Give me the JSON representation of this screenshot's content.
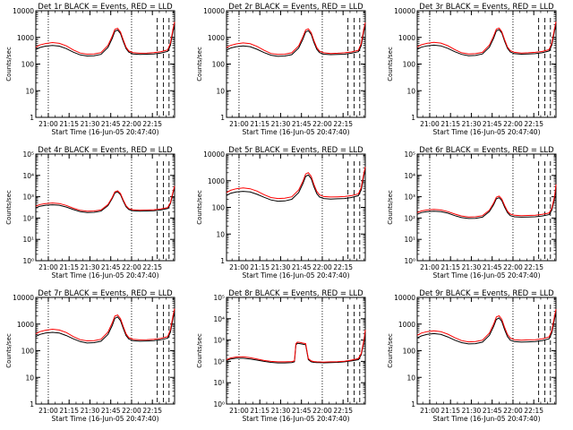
{
  "chart_data": [
    {
      "type": "line",
      "title": "Det 1r BLACK = Events, RED = LLD",
      "xlabel": "Start Time (16-Jun-05 20:47:40)",
      "ylabel": "Counts/sec",
      "x_ticks": [
        "21:00",
        "21:15",
        "21:30",
        "21:45",
        "22:00",
        "22:15"
      ],
      "y_ticks": [
        "1",
        "10",
        "100",
        "1000",
        "10000"
      ],
      "ylim": [
        1,
        10000
      ],
      "ygrid": false,
      "legend": "none",
      "x": [
        0,
        3,
        7,
        12,
        17,
        22,
        27,
        32,
        37,
        42,
        47,
        52,
        55,
        57,
        59,
        61,
        63,
        65,
        67,
        70,
        75,
        80,
        85,
        90,
        95,
        97,
        99,
        100
      ],
      "series": [
        {
          "values": [
            350,
            420,
            470,
            500,
            470,
            380,
            280,
            220,
            200,
            205,
            230,
            420,
            900,
            1700,
            1900,
            1400,
            700,
            380,
            280,
            240,
            230,
            235,
            240,
            260,
            300,
            500,
            1800,
            3000
          ]
        },
        {
          "values": [
            430,
            520,
            590,
            640,
            600,
            480,
            340,
            260,
            235,
            240,
            270,
            500,
            1100,
            2000,
            2200,
            1600,
            800,
            430,
            310,
            270,
            255,
            260,
            270,
            290,
            340,
            600,
            2200,
            3800
          ]
        }
      ],
      "vlines_dotted": [
        0.09,
        0.69
      ],
      "vlines_dashed": [
        0.875,
        0.92,
        0.96
      ]
    },
    {
      "type": "line",
      "title": "Det 2r BLACK = Events, RED = LLD",
      "xlabel": "Start Time (16-Jun-05 20:47:40)",
      "ylabel": "Counts/sec",
      "x_ticks": [
        "21:00",
        "21:15",
        "21:30",
        "21:45",
        "22:00",
        "22:15"
      ],
      "y_ticks": [
        "1",
        "10",
        "100",
        "1000",
        "10000"
      ],
      "ylim": [
        1,
        10000
      ],
      "ygrid": false,
      "legend": "none",
      "x": [
        0,
        3,
        7,
        12,
        17,
        22,
        27,
        32,
        37,
        42,
        47,
        52,
        55,
        57,
        59,
        61,
        63,
        65,
        67,
        70,
        75,
        80,
        85,
        90,
        95,
        97,
        99,
        100
      ],
      "series": [
        {
          "values": [
            330,
            400,
            450,
            480,
            450,
            360,
            270,
            215,
            195,
            200,
            225,
            400,
            850,
            1600,
            1800,
            1300,
            650,
            360,
            270,
            235,
            225,
            230,
            235,
            255,
            290,
            480,
            1700,
            2800
          ]
        },
        {
          "values": [
            420,
            500,
            570,
            620,
            580,
            460,
            330,
            250,
            230,
            235,
            265,
            480,
            1050,
            1900,
            2100,
            1500,
            760,
            420,
            305,
            265,
            250,
            255,
            265,
            285,
            330,
            580,
            2100,
            3600
          ]
        }
      ],
      "vlines_dotted": [
        0.09,
        0.69
      ],
      "vlines_dashed": [
        0.875,
        0.92,
        0.96
      ]
    },
    {
      "type": "line",
      "title": "Det 3r BLACK = Events, RED = LLD",
      "xlabel": "Start Time (16-Jun-05 20:47:40)",
      "ylabel": "Counts/sec",
      "x_ticks": [
        "21:00",
        "21:15",
        "21:30",
        "21:45",
        "22:00",
        "22:15"
      ],
      "y_ticks": [
        "1",
        "10",
        "100",
        "1000",
        "10000"
      ],
      "ylim": [
        1,
        10000
      ],
      "ygrid": false,
      "legend": "none",
      "x": [
        0,
        3,
        7,
        12,
        17,
        22,
        27,
        32,
        37,
        42,
        47,
        52,
        55,
        57,
        59,
        61,
        63,
        65,
        67,
        70,
        75,
        80,
        85,
        90,
        95,
        97,
        99,
        100
      ],
      "series": [
        {
          "values": [
            360,
            430,
            480,
            510,
            480,
            390,
            290,
            230,
            205,
            210,
            240,
            430,
            920,
            1750,
            1950,
            1450,
            720,
            390,
            285,
            245,
            235,
            240,
            245,
            265,
            310,
            520,
            1850,
            3100
          ]
        },
        {
          "values": [
            440,
            530,
            600,
            650,
            610,
            490,
            350,
            265,
            240,
            245,
            275,
            510,
            1120,
            2050,
            2250,
            1650,
            820,
            440,
            320,
            275,
            260,
            265,
            275,
            295,
            350,
            620,
            2250,
            3900
          ]
        }
      ],
      "vlines_dotted": [
        0.09,
        0.69
      ],
      "vlines_dashed": [
        0.875,
        0.92,
        0.96
      ]
    },
    {
      "type": "line",
      "title": "Det 4r BLACK = Events, RED = LLD",
      "xlabel": "Start Time (16-Jun-05 20:47:40)",
      "ylabel": "Counts/sec",
      "x_ticks": [
        "21:00",
        "21:15",
        "21:30",
        "21:45",
        "22:00",
        "22:15"
      ],
      "y_ticks": [
        "10⁰",
        "10¹",
        "10²",
        "10³",
        "10⁴",
        "10⁵"
      ],
      "ylim": [
        1,
        100000
      ],
      "ygrid": false,
      "legend": "none",
      "x": [
        0,
        3,
        7,
        12,
        17,
        22,
        27,
        32,
        37,
        42,
        47,
        52,
        55,
        57,
        59,
        61,
        63,
        65,
        67,
        70,
        75,
        80,
        85,
        90,
        95,
        97,
        99,
        100
      ],
      "series": [
        {
          "values": [
            300,
            360,
            400,
            420,
            400,
            330,
            250,
            200,
            180,
            185,
            210,
            380,
            820,
            1500,
            1700,
            1250,
            620,
            340,
            250,
            220,
            210,
            215,
            220,
            240,
            280,
            460,
            1600,
            2700
          ]
        },
        {
          "values": [
            360,
            430,
            480,
            510,
            480,
            390,
            290,
            230,
            210,
            215,
            240,
            430,
            920,
            1700,
            1900,
            1400,
            700,
            380,
            280,
            245,
            235,
            240,
            245,
            265,
            310,
            520,
            1800,
            3200
          ]
        }
      ],
      "vlines_dotted": [
        0.09,
        0.69
      ],
      "vlines_dashed": [
        0.875,
        0.92,
        0.96
      ]
    },
    {
      "type": "line",
      "title": "Det 5r BLACK = Events, RED = LLD",
      "xlabel": "Start Time (16-Jun-05 20:47:40)",
      "ylabel": "Counts/sec",
      "x_ticks": [
        "21:00",
        "21:15",
        "21:30",
        "21:45",
        "22:00",
        "22:15"
      ],
      "y_ticks": [
        "1",
        "10",
        "100",
        "1000",
        "10000"
      ],
      "ylim": [
        1,
        10000
      ],
      "ygrid": false,
      "legend": "none",
      "x": [
        0,
        3,
        7,
        12,
        17,
        22,
        27,
        32,
        37,
        42,
        47,
        52,
        55,
        57,
        59,
        61,
        63,
        65,
        67,
        70,
        75,
        80,
        85,
        90,
        95,
        97,
        99,
        100
      ],
      "series": [
        {
          "values": [
            280,
            340,
            380,
            400,
            380,
            310,
            240,
            190,
            170,
            175,
            200,
            360,
            780,
            1450,
            1650,
            1200,
            600,
            330,
            245,
            215,
            205,
            210,
            215,
            235,
            275,
            450,
            1550,
            2600
          ]
        },
        {
          "values": [
            360,
            440,
            500,
            540,
            500,
            410,
            300,
            235,
            215,
            220,
            250,
            450,
            960,
            1800,
            2000,
            1450,
            730,
            400,
            295,
            255,
            245,
            250,
            255,
            275,
            320,
            540,
            1900,
            3300
          ]
        }
      ],
      "vlines_dotted": [
        0.09,
        0.69
      ],
      "vlines_dashed": [
        0.875,
        0.92,
        0.96
      ]
    },
    {
      "type": "line",
      "title": "Det 6r BLACK = Events, RED = LLD",
      "xlabel": "Start Time (16-Jun-05 20:47:40)",
      "ylabel": "Counts/sec",
      "x_ticks": [
        "21:00",
        "21:15",
        "21:30",
        "21:45",
        "22:00",
        "22:15"
      ],
      "y_ticks": [
        "10⁰",
        "10¹",
        "10²",
        "10³",
        "10⁴",
        "10⁵"
      ],
      "ylim": [
        1,
        100000
      ],
      "ygrid": false,
      "legend": "none",
      "x": [
        0,
        3,
        7,
        12,
        17,
        22,
        27,
        32,
        37,
        42,
        47,
        52,
        55,
        57,
        59,
        61,
        63,
        65,
        67,
        70,
        75,
        80,
        85,
        90,
        95,
        97,
        99,
        100
      ],
      "series": [
        {
          "values": [
            150,
            180,
            200,
            210,
            200,
            170,
            130,
            105,
            95,
            97,
            110,
            200,
            420,
            800,
            900,
            660,
            330,
            180,
            130,
            115,
            110,
            112,
            115,
            125,
            145,
            240,
            900,
            3000
          ]
        },
        {
          "values": [
            180,
            215,
            240,
            255,
            240,
            200,
            155,
            125,
            112,
            115,
            130,
            235,
            500,
            950,
            1070,
            780,
            390,
            210,
            155,
            135,
            130,
            132,
            135,
            148,
            172,
            290,
            1100,
            3800
          ]
        }
      ],
      "vlines_dotted": [
        0.09,
        0.69
      ],
      "vlines_dashed": [
        0.875,
        0.92,
        0.96
      ]
    },
    {
      "type": "line",
      "title": "Det 7r BLACK = Events, RED = LLD",
      "xlabel": "Start Time (16-Jun-05 20:47:40)",
      "ylabel": "Counts/sec",
      "x_ticks": [
        "21:00",
        "21:15",
        "21:30",
        "21:45",
        "22:00",
        "22:15"
      ],
      "y_ticks": [
        "1",
        "10",
        "100",
        "1000",
        "10000"
      ],
      "ylim": [
        1,
        10000
      ],
      "ygrid": false,
      "legend": "none",
      "x": [
        0,
        3,
        7,
        12,
        17,
        22,
        27,
        32,
        37,
        42,
        47,
        52,
        55,
        57,
        59,
        61,
        63,
        65,
        67,
        70,
        75,
        80,
        85,
        90,
        95,
        97,
        99,
        100
      ],
      "series": [
        {
          "values": [
            340,
            410,
            460,
            490,
            460,
            370,
            280,
            220,
            195,
            200,
            228,
            410,
            870,
            1650,
            1850,
            1350,
            680,
            370,
            275,
            238,
            228,
            232,
            238,
            258,
            295,
            490,
            1750,
            2900
          ]
        },
        {
          "values": [
            430,
            520,
            590,
            640,
            600,
            480,
            340,
            260,
            235,
            240,
            270,
            500,
            1100,
            2000,
            2200,
            1600,
            800,
            430,
            310,
            270,
            255,
            260,
            270,
            290,
            340,
            600,
            2200,
            3800
          ]
        }
      ],
      "vlines_dotted": [
        0.09,
        0.69
      ],
      "vlines_dashed": [
        0.875,
        0.92,
        0.96
      ]
    },
    {
      "type": "line",
      "title": "Det 8r BLACK = Events, RED = LLD",
      "xlabel": "Start Time (16-Jun-05 20:47:40)",
      "ylabel": "Counts/sec",
      "x_ticks": [
        "21:00",
        "21:15",
        "21:30",
        "21:45",
        "22:00",
        "22:15"
      ],
      "y_ticks": [
        "10⁰",
        "10¹",
        "10²",
        "10³",
        "10⁴",
        "10⁵"
      ],
      "ylim": [
        1,
        100000
      ],
      "ygrid": false,
      "legend": "none",
      "x": [
        0,
        3,
        7,
        12,
        17,
        22,
        27,
        32,
        37,
        42,
        47,
        49,
        50,
        51,
        53,
        55,
        57,
        59,
        61,
        63,
        65,
        67,
        70,
        75,
        80,
        85,
        90,
        95,
        97,
        99,
        100
      ],
      "series": [
        {
          "values": [
            110,
            130,
            140,
            140,
            130,
            115,
            100,
            90,
            85,
            85,
            88,
            95,
            600,
            700,
            680,
            640,
            600,
            120,
            95,
            90,
            88,
            87,
            86,
            88,
            90,
            95,
            105,
            120,
            200,
            800,
            2500
          ]
        },
        {
          "values": [
            120,
            145,
            160,
            165,
            150,
            130,
            110,
            100,
            95,
            95,
            98,
            105,
            680,
            800,
            770,
            720,
            680,
            135,
            105,
            98,
            95,
            94,
            93,
            95,
            97,
            102,
            115,
            135,
            230,
            950,
            3000
          ]
        }
      ],
      "vlines_dotted": [
        0.09,
        0.69
      ],
      "vlines_dashed": [
        0.875,
        0.92,
        0.96
      ]
    },
    {
      "type": "line",
      "title": "Det 9r BLACK = Events, RED = LLD",
      "xlabel": "Start Time (16-Jun-05 20:47:40)",
      "ylabel": "Counts/sec",
      "x_ticks": [
        "21:00",
        "21:15",
        "21:30",
        "21:45",
        "22:00",
        "22:15"
      ],
      "y_ticks": [
        "1",
        "10",
        "100",
        "1000",
        "10000"
      ],
      "ylim": [
        1,
        10000
      ],
      "ygrid": false,
      "legend": "none",
      "x": [
        0,
        3,
        7,
        12,
        17,
        22,
        27,
        32,
        37,
        42,
        47,
        52,
        55,
        57,
        59,
        61,
        63,
        65,
        67,
        70,
        75,
        80,
        85,
        90,
        95,
        97,
        99,
        100
      ],
      "series": [
        {
          "values": [
            300,
            360,
            410,
            440,
            410,
            330,
            250,
            200,
            180,
            185,
            210,
            380,
            800,
            1500,
            1700,
            1250,
            620,
            340,
            250,
            220,
            210,
            215,
            220,
            240,
            280,
            470,
            1650,
            2800
          ]
        },
        {
          "values": [
            380,
            460,
            520,
            560,
            520,
            420,
            310,
            240,
            215,
            220,
            250,
            460,
            980,
            1850,
            2050,
            1500,
            750,
            410,
            300,
            260,
            250,
            255,
            260,
            280,
            330,
            580,
            2100,
            3600
          ]
        }
      ],
      "vlines_dotted": [
        0.09,
        0.69
      ],
      "vlines_dashed": [
        0.875,
        0.92,
        0.96
      ]
    }
  ],
  "colors": {
    "events": "#000000",
    "lld": "#ff0000",
    "background": "#ffffff",
    "axis": "#000000"
  }
}
